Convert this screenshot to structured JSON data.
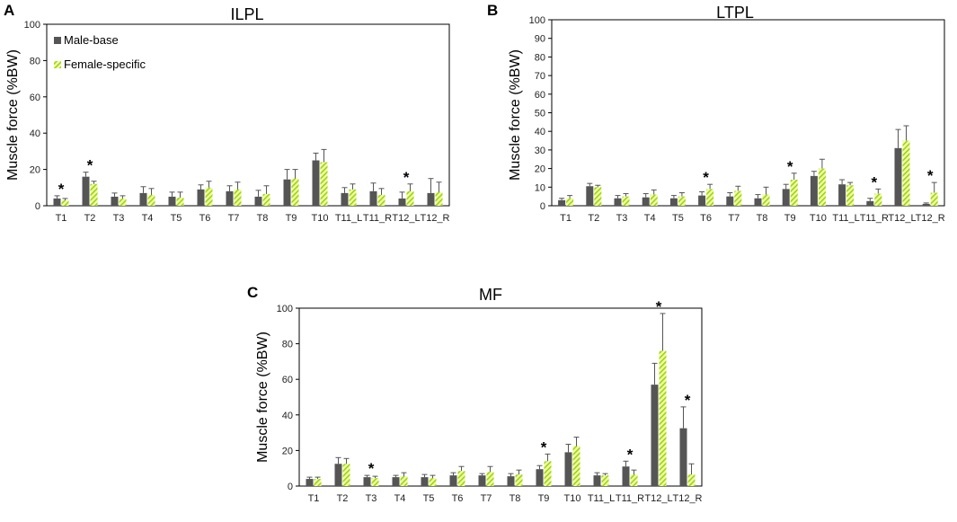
{
  "colors": {
    "male": "#555555",
    "female_fill": "#f2ff9f",
    "female_stripe": "#9ad21a",
    "error": "#555555",
    "frame": "#000000"
  },
  "legend": {
    "male_label": "Male-base",
    "female_label": "Female-specific"
  },
  "chart_data": [
    {
      "type": "bar",
      "panel": "A",
      "title": "ILPL",
      "ylabel": "Muscle force (%BW)",
      "xlabel": "",
      "ylim": [
        0,
        100
      ],
      "yticks": [
        0,
        20,
        40,
        60,
        80,
        100
      ],
      "categories": [
        "T1",
        "T2",
        "T3",
        "T4",
        "T5",
        "T6",
        "T7",
        "T8",
        "T9",
        "T10",
        "T11_L",
        "T11_R",
        "T12_L",
        "T12_R"
      ],
      "series": [
        {
          "name": "Male-base",
          "values": [
            4,
            16,
            5,
            7,
            5,
            9,
            8,
            5,
            14.5,
            25,
            7,
            8,
            4,
            7
          ],
          "errors": [
            1.5,
            2.5,
            2,
            3.5,
            2.5,
            2.5,
            3,
            3.5,
            5.5,
            4,
            3,
            4.5,
            3.5,
            8
          ]
        },
        {
          "name": "Female-specific",
          "values": [
            3,
            12,
            4,
            6,
            4.5,
            10,
            9,
            6.5,
            15,
            24,
            9,
            6,
            8,
            7.5
          ],
          "errors": [
            1,
            1.5,
            1.5,
            3.5,
            3,
            3.5,
            4,
            4.5,
            5,
            7,
            3,
            3.5,
            4,
            5.5
          ]
        }
      ],
      "significance": [
        "T1",
        "T2",
        "T12_L"
      ]
    },
    {
      "type": "bar",
      "panel": "B",
      "title": "LTPL",
      "ylabel": "Muscle force (%BW)",
      "xlabel": "",
      "ylim": [
        0,
        100
      ],
      "yticks": [
        0,
        10,
        20,
        30,
        40,
        50,
        60,
        70,
        80,
        90,
        100
      ],
      "categories": [
        "T1",
        "T2",
        "T3",
        "T4",
        "T5",
        "T6",
        "T7",
        "T8",
        "T9",
        "T10",
        "T11_L",
        "T11_R",
        "T12_L",
        "T12_R"
      ],
      "series": [
        {
          "name": "Male-base",
          "values": [
            3,
            10.5,
            4,
            4.5,
            4,
            5.5,
            5,
            4,
            9,
            16,
            11.5,
            2.5,
            31,
            1
          ],
          "errors": [
            1,
            1.5,
            1.5,
            2,
            1.5,
            2,
            2,
            2,
            2.5,
            2.5,
            2.5,
            1.5,
            10,
            0.5
          ]
        },
        {
          "name": "Female-specific",
          "values": [
            4,
            10,
            5,
            6,
            5,
            9,
            8,
            6,
            14,
            20,
            11,
            6.5,
            35,
            7
          ],
          "errors": [
            1.5,
            1,
            1.5,
            2.5,
            2,
            2.5,
            2.5,
            4,
            3.5,
            5,
            1.5,
            2.5,
            8,
            5.5
          ]
        }
      ],
      "significance": [
        "T6",
        "T9",
        "T11_R",
        "T12_R"
      ]
    },
    {
      "type": "bar",
      "panel": "C",
      "title": "MF",
      "ylabel": "Muscle force (%BW)",
      "xlabel": "",
      "ylim": [
        0,
        100
      ],
      "yticks": [
        0,
        20,
        40,
        60,
        80,
        100
      ],
      "categories": [
        "T1",
        "T2",
        "T3",
        "T4",
        "T5",
        "T6",
        "T7",
        "T8",
        "T9",
        "T10",
        "T11_L",
        "T11_R",
        "T12_L",
        "T12_R"
      ],
      "series": [
        {
          "name": "Male-base",
          "values": [
            4,
            12.5,
            5,
            5,
            5,
            6,
            6,
            5.5,
            9.5,
            19,
            6,
            11,
            57,
            32.5
          ],
          "errors": [
            1,
            3.5,
            1,
            1,
            1.5,
            1.5,
            1,
            1.5,
            2,
            4.5,
            1.5,
            3,
            12,
            12
          ]
        },
        {
          "name": "Female-specific",
          "values": [
            4,
            12.5,
            4.5,
            5.5,
            4.5,
            8.5,
            8,
            6.5,
            14,
            22.5,
            6,
            6.5,
            76,
            6.5
          ],
          "errors": [
            1,
            3,
            1,
            2,
            1.5,
            2.5,
            3,
            2.5,
            4,
            5,
            1,
            2.5,
            21,
            6
          ]
        }
      ],
      "significance": [
        "T3",
        "T9",
        "T11_R",
        "T12_L",
        "T12_R"
      ]
    }
  ]
}
